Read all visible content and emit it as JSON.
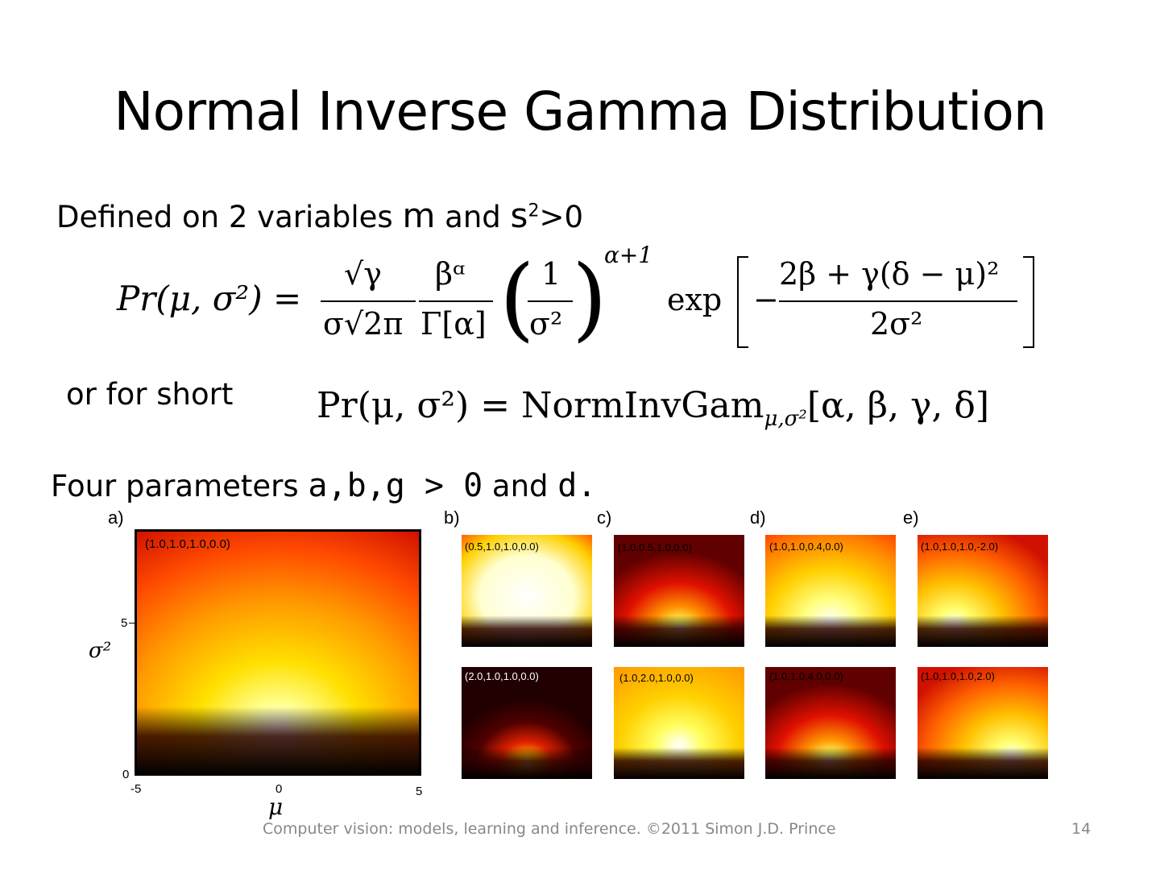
{
  "slide": {
    "title": "Normal Inverse Gamma Distribution",
    "defined_prefix": "Defined on  2 variables ",
    "var_mu": "m",
    "defined_and": " and ",
    "var_sigma": "s",
    "sigma_sup": "2",
    "defined_suffix": ">0",
    "or_for_short": "or for short",
    "params_prefix": "Four parameters ",
    "params_greek": "a,b,g > 0",
    "params_and": " and ",
    "params_delta": "d."
  },
  "equation": {
    "pr_lhs": "Pr(μ, σ²) =",
    "sqrt_gamma": "√γ",
    "sigma_sqrt_2pi": "σ√2π",
    "beta_alpha": "βᵅ",
    "gamma_alpha": "Γ[α]",
    "one": "1",
    "sigma_sq": "σ²",
    "exponent": "α+1",
    "exp": "exp",
    "numerator": "2β + γ(δ − μ)²",
    "denominator": "2σ²",
    "minus": "−"
  },
  "short_equation": {
    "lhs": "Pr(μ, σ²) = NormInvGam",
    "subscript": "μ,σ²",
    "args": "[α, β, γ, δ]"
  },
  "figure": {
    "panel_a": {
      "label": "a)",
      "params": "(1.0,1.0,1.0,0.0)",
      "y_label": "σ²",
      "x_label": "μ",
      "y_ticks": [
        "5",
        "0"
      ],
      "x_ticks": [
        "-5",
        "0",
        "5"
      ]
    },
    "panel_labels": [
      "b)",
      "c)",
      "d)",
      "e)"
    ],
    "panels": [
      {
        "params": "(0.5,1.0,1.0,0.0)"
      },
      {
        "params": "(2.0,1.0,1.0,0.0)"
      },
      {
        "params": "(1.0,0.5,1.0,0.0)"
      },
      {
        "params": "(1.0,2.0,1.0,0.0)"
      },
      {
        "params": "(1.0,1.0,0.4,0.0)"
      },
      {
        "params": "(1.0,1.0,4.0,0.0)"
      },
      {
        "params": "(1.0,1.0,1.0,-2.0)"
      },
      {
        "params": "(1.0,1.0,1.0,2.0)"
      }
    ]
  },
  "footer": {
    "text": "Computer vision: models, learning and inference.  ©2011 Simon J.D. Prince",
    "page": "14"
  }
}
